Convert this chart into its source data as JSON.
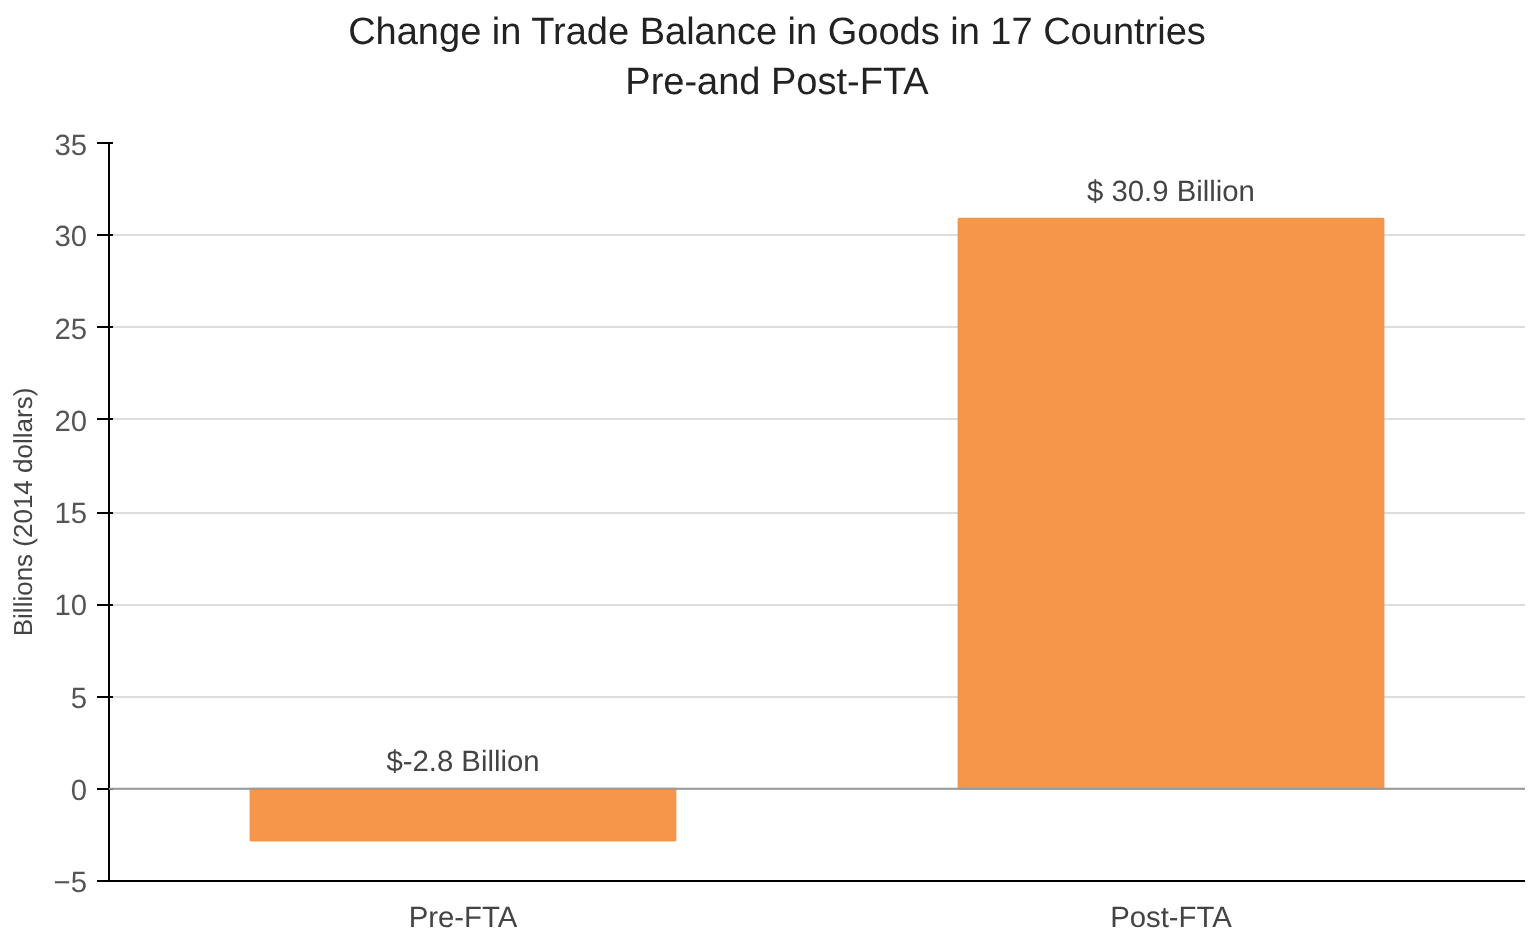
{
  "chart_data": {
    "type": "bar",
    "title": "Change in Trade Balance in Goods in 17 Countries\nPre-and Post-FTA",
    "ylabel": "Billions (2014 dollars)",
    "categories": [
      "Pre-FTA",
      "Post-FTA"
    ],
    "values": [
      -2.8,
      30.9
    ],
    "value_labels": [
      "$-2.8 Billion",
      "$ 30.9 Billion"
    ],
    "color": "#f5964a",
    "ylim": [
      -5,
      35
    ],
    "yticks": [
      -5,
      0,
      5,
      10,
      15,
      20,
      25,
      30,
      35
    ],
    "grid": "y"
  }
}
